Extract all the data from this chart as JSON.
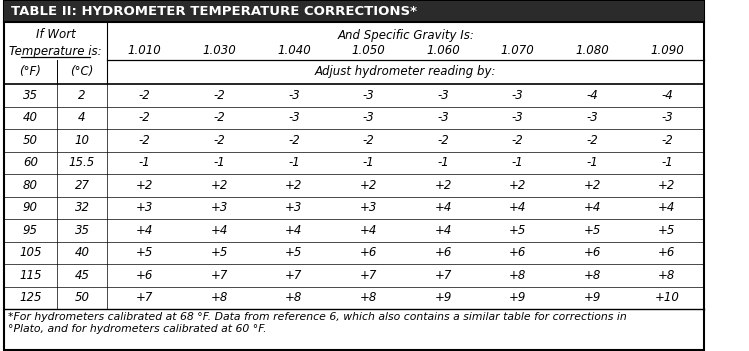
{
  "title": "TABLE II: HYDROMETER TEMPERATURE CORRECTIONS*",
  "col_headers_sg": [
    "1.010",
    "1.030",
    "1.040",
    "1.050",
    "1.060",
    "1.070",
    "1.080",
    "1.090"
  ],
  "sg_header": "And Specific Gravity Is:",
  "adjust_header": "Adjust hydrometer reading by:",
  "rows": [
    [
      "35",
      "2",
      "-2",
      "-2",
      "-3",
      "-3",
      "-3",
      "-3",
      "-4",
      "-4"
    ],
    [
      "40",
      "4",
      "-2",
      "-2",
      "-3",
      "-3",
      "-3",
      "-3",
      "-3",
      "-3"
    ],
    [
      "50",
      "10",
      "-2",
      "-2",
      "-2",
      "-2",
      "-2",
      "-2",
      "-2",
      "-2"
    ],
    [
      "60",
      "15.5",
      "-1",
      "-1",
      "-1",
      "-1",
      "-1",
      "-1",
      "-1",
      "-1"
    ],
    [
      "80",
      "27",
      "+2",
      "+2",
      "+2",
      "+2",
      "+2",
      "+2",
      "+2",
      "+2"
    ],
    [
      "90",
      "32",
      "+3",
      "+3",
      "+3",
      "+3",
      "+4",
      "+4",
      "+4",
      "+4"
    ],
    [
      "95",
      "35",
      "+4",
      "+4",
      "+4",
      "+4",
      "+4",
      "+5",
      "+5",
      "+5"
    ],
    [
      "105",
      "40",
      "+5",
      "+5",
      "+5",
      "+6",
      "+6",
      "+6",
      "+6",
      "+6"
    ],
    [
      "115",
      "45",
      "+6",
      "+7",
      "+7",
      "+7",
      "+7",
      "+8",
      "+8",
      "+8"
    ],
    [
      "125",
      "50",
      "+7",
      "+8",
      "+8",
      "+8",
      "+9",
      "+9",
      "+9",
      "+10"
    ]
  ],
  "footnote_line1": "*For hydrometers calibrated at 68 °F. Data from reference 6, which also contains a similar table for corrections in",
  "footnote_line2": "°Plato, and for hydrometers calibrated at 60 °F.",
  "title_bg": "#2b2b2b",
  "title_fg": "#ffffff",
  "border_color": "#000000",
  "bg_color": "#ffffff",
  "title_fontsize": 9.5,
  "header_fontsize": 8.5,
  "data_fontsize": 8.5,
  "footnote_fontsize": 7.8
}
